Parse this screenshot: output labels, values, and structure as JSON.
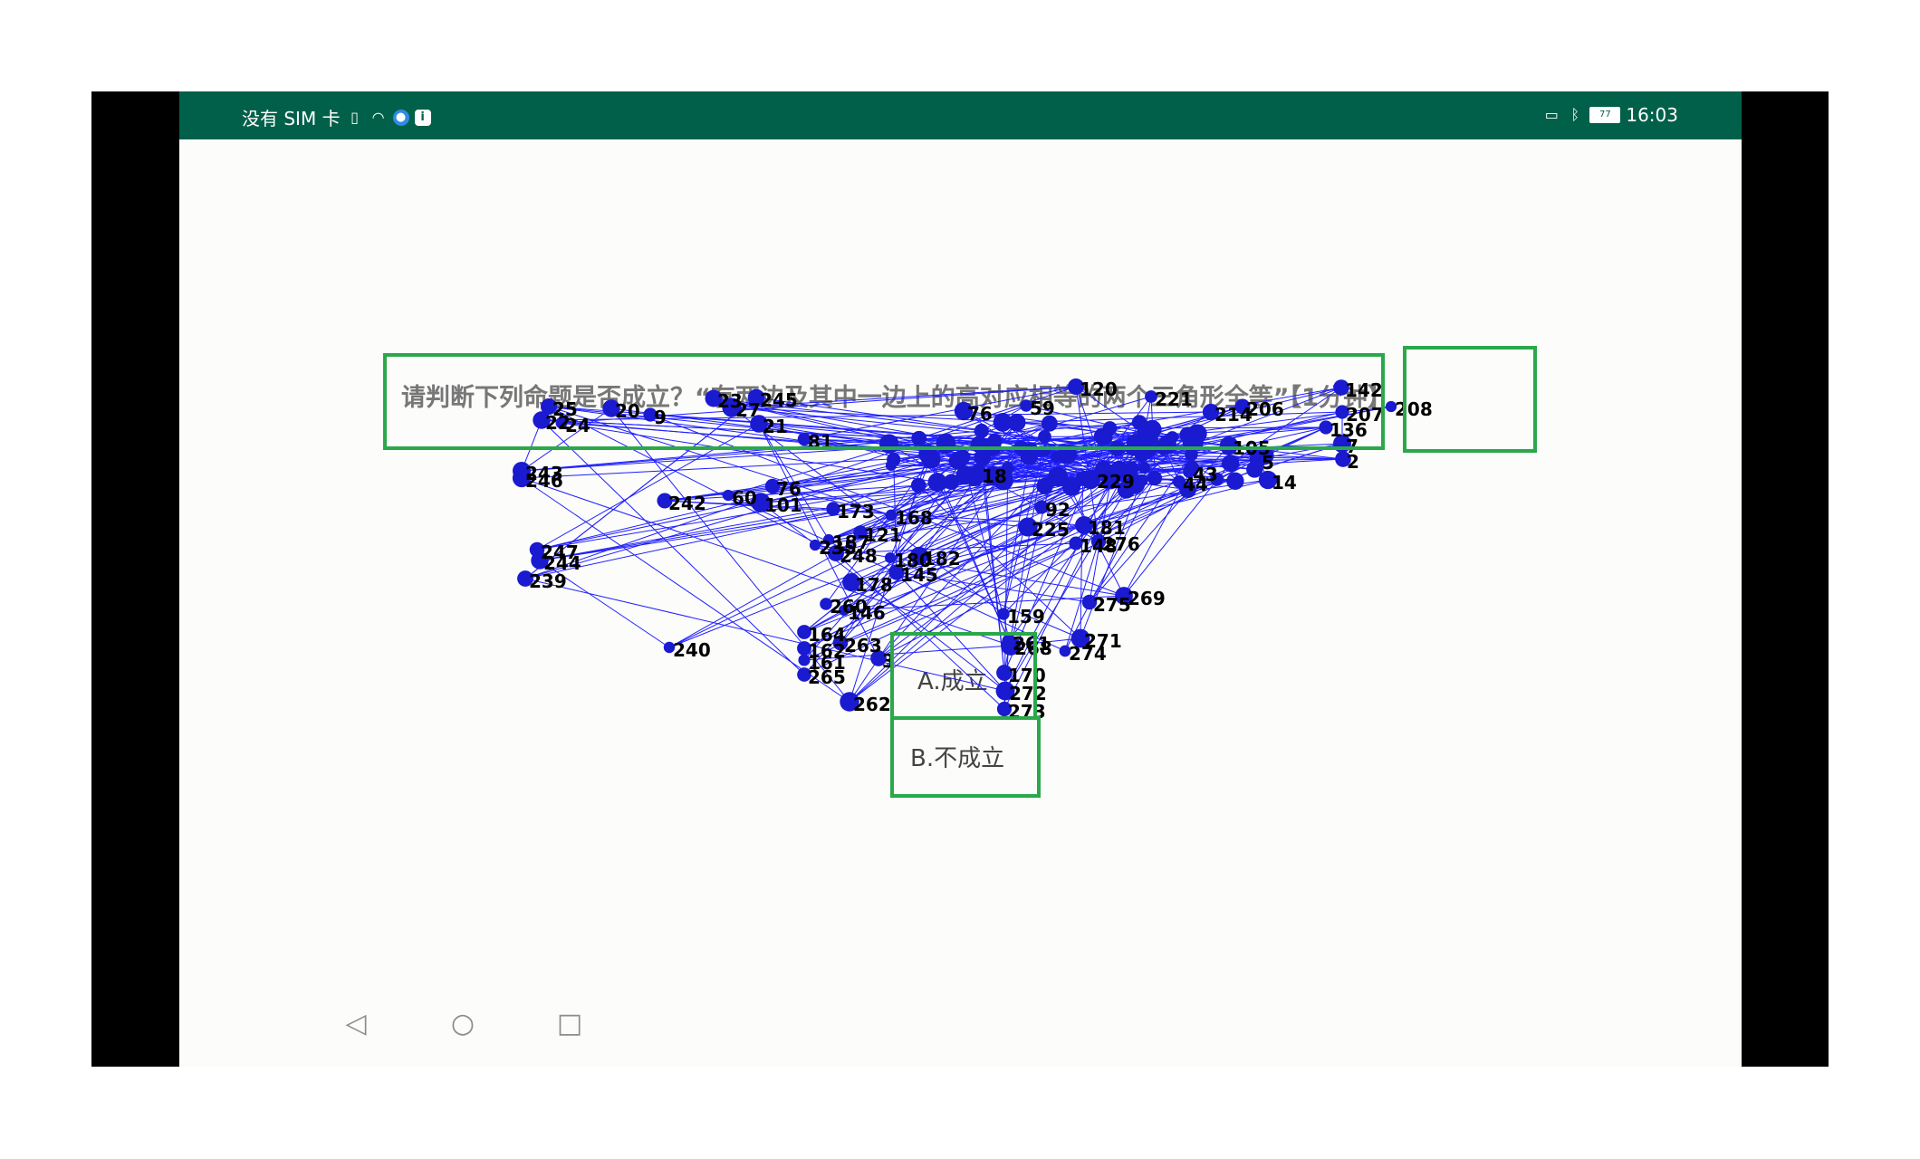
{
  "status_bar": {
    "carrier_text": "没有 SIM 卡",
    "time": "16:03",
    "battery_level": "77",
    "icons_left": [
      "sim-card-icon",
      "wifi-icon",
      "app-notification-icon",
      "info-notification-icon"
    ],
    "icons_right": [
      "screen-cast-icon",
      "bluetooth-icon",
      "battery-icon"
    ],
    "background_color": "#006049"
  },
  "question": {
    "text": "请判断下列命题是否成立？“有两边及其中一边上的高对应相等的两个三角形全等”",
    "timer": "【1分钟】"
  },
  "options": {
    "a": "A.成立",
    "b": "B.不成立"
  },
  "highlight_color": "#2aa84a",
  "graph": {
    "edge_color": "#1f1fff",
    "node_color": "#1a1ad0",
    "label_color": "#000000",
    "labels": [
      "20",
      "245",
      "23",
      "27",
      "21",
      "9",
      "22",
      "24",
      "25",
      "81",
      "76",
      "60",
      "101",
      "242",
      "243",
      "246",
      "247",
      "244",
      "239",
      "240",
      "262",
      "260",
      "146",
      "164",
      "162",
      "161",
      "265",
      "263",
      "3",
      "178",
      "145",
      "180",
      "182",
      "187",
      "248",
      "235",
      "121",
      "173",
      "168",
      "159",
      "261",
      "268",
      "170",
      "272",
      "273",
      "271",
      "274",
      "269",
      "275",
      "276",
      "148",
      "181",
      "225",
      "92",
      "120",
      "221",
      "214",
      "206",
      "142",
      "208",
      "207",
      "136",
      "105",
      "44",
      "43",
      "2",
      "7",
      "14",
      "5",
      "76",
      "59",
      "18",
      "229"
    ]
  },
  "nav_bar": {
    "back": "◁",
    "home": "○",
    "recent": "□"
  }
}
